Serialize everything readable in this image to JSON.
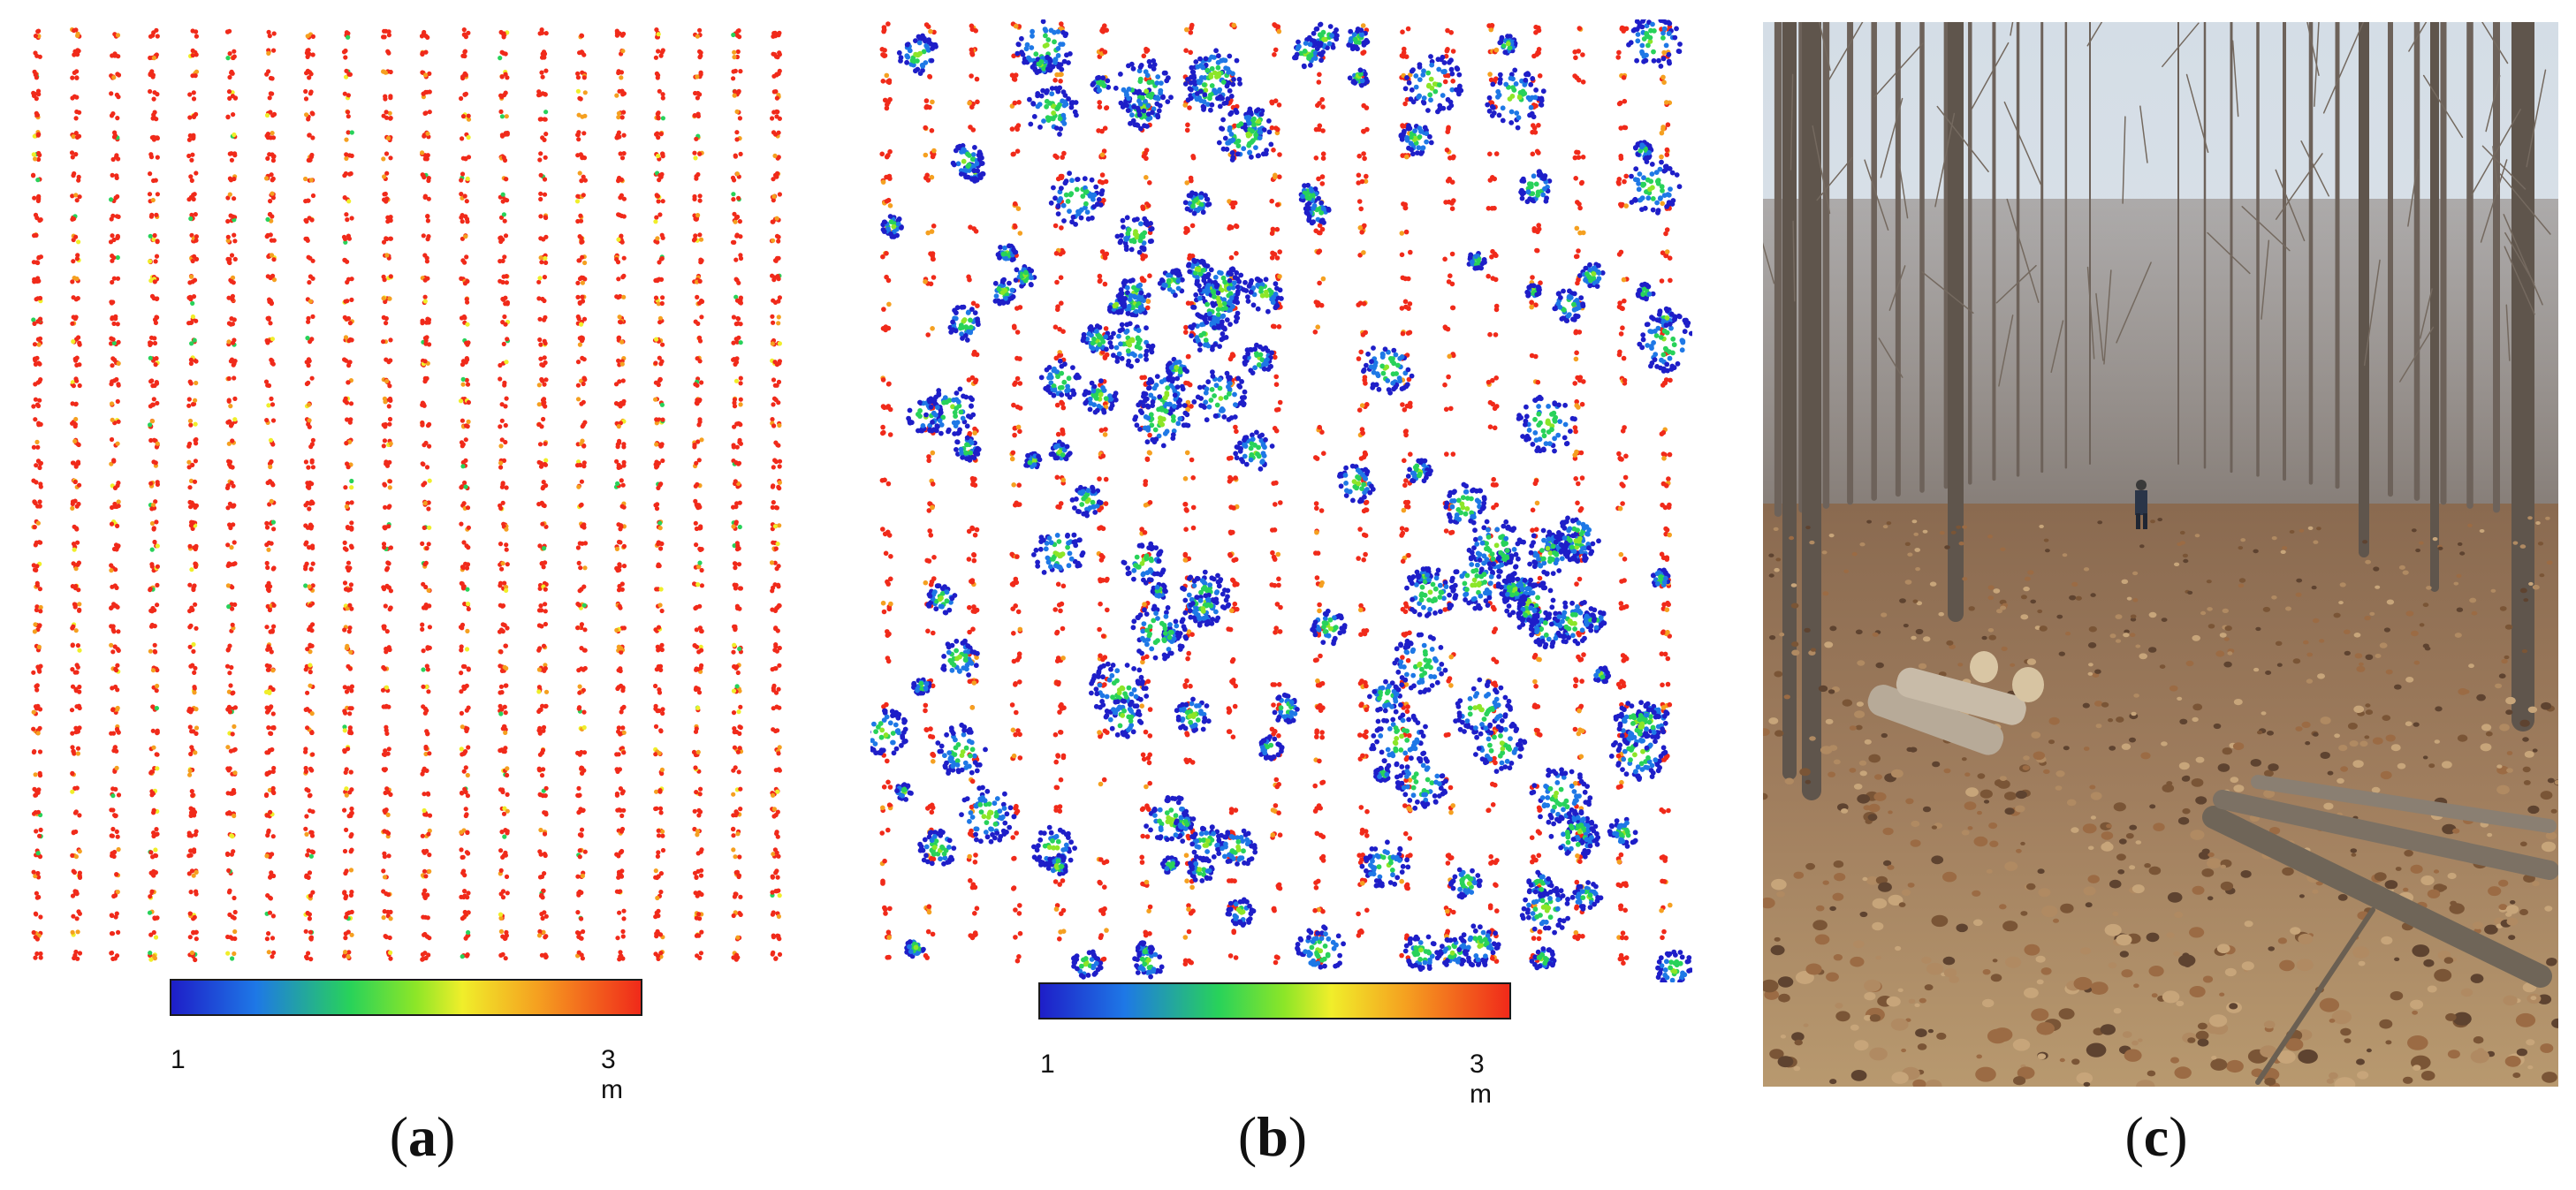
{
  "figure": {
    "panels": [
      {
        "id": "a",
        "label_open": "(",
        "label_letter": "a",
        "label_close": ")",
        "colorbar": {
          "min_label": "1",
          "max_label": "3 m"
        }
      },
      {
        "id": "b",
        "label_open": "(",
        "label_letter": "b",
        "label_close": ")",
        "colorbar": {
          "min_label": "1",
          "max_label": "3 m"
        }
      },
      {
        "id": "c",
        "label_open": "(",
        "label_letter": "c",
        "label_close": ")"
      }
    ],
    "colormap": [
      "#1e1ec8",
      "#1e78e6",
      "#28d25a",
      "#8ce628",
      "#f0ee2a",
      "#f5a020",
      "#f02a1a"
    ]
  }
}
